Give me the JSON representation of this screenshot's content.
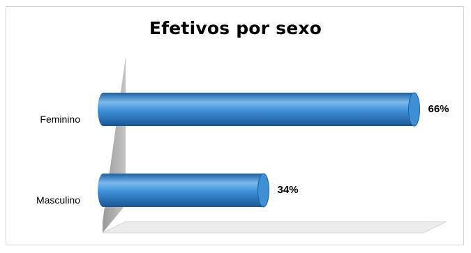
{
  "chart_data": {
    "type": "bar",
    "orientation": "horizontal",
    "title": "Efetivos por sexo",
    "categories": [
      "Feminino",
      "Masculino"
    ],
    "values": [
      66,
      34
    ],
    "value_labels": [
      "66%",
      "34%"
    ],
    "xlim": [
      0,
      100
    ],
    "grid": false,
    "legend": "none",
    "style": "3d-cylinder"
  },
  "colors": {
    "bar": "#3d8fd6",
    "bar_light": "#7ab9ee",
    "bar_dark": "#1f5f9e",
    "wall": "#b3b3b3",
    "floor": "#ececec"
  }
}
